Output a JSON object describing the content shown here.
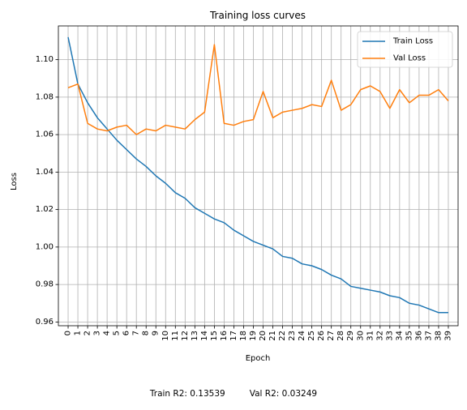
{
  "chart_data": {
    "type": "line",
    "title": "Training loss curves",
    "xlabel": "Epoch",
    "ylabel": "Loss",
    "x": [
      0,
      1,
      2,
      3,
      4,
      5,
      6,
      7,
      8,
      9,
      10,
      11,
      12,
      13,
      14,
      15,
      16,
      17,
      18,
      19,
      20,
      21,
      22,
      23,
      24,
      25,
      26,
      27,
      28,
      29,
      30,
      31,
      32,
      33,
      34,
      35,
      36,
      37,
      38,
      39
    ],
    "xlim": [
      -1,
      40
    ],
    "ylim": [
      0.958,
      1.118
    ],
    "yticks": [
      0.96,
      0.98,
      1.0,
      1.02,
      1.04,
      1.06,
      1.08,
      1.1
    ],
    "ytick_labels": [
      "0.96",
      "0.98",
      "1.00",
      "1.02",
      "1.04",
      "1.06",
      "1.08",
      "1.10"
    ],
    "grid": true,
    "legend": "top-right",
    "series": [
      {
        "name": "Train Loss",
        "color": "#1f77b4",
        "values": [
          1.112,
          1.087,
          1.077,
          1.069,
          1.063,
          1.057,
          1.052,
          1.047,
          1.043,
          1.038,
          1.034,
          1.029,
          1.026,
          1.021,
          1.018,
          1.015,
          1.013,
          1.009,
          1.006,
          1.003,
          1.001,
          0.999,
          0.995,
          0.994,
          0.991,
          0.99,
          0.988,
          0.985,
          0.983,
          0.979,
          0.978,
          0.977,
          0.976,
          0.974,
          0.973,
          0.97,
          0.969,
          0.967,
          0.965,
          0.965
        ]
      },
      {
        "name": "Val Loss",
        "color": "#ff7f0e",
        "values": [
          1.085,
          1.087,
          1.066,
          1.063,
          1.062,
          1.064,
          1.065,
          1.06,
          1.063,
          1.062,
          1.065,
          1.064,
          1.063,
          1.068,
          1.072,
          1.108,
          1.066,
          1.065,
          1.067,
          1.068,
          1.083,
          1.069,
          1.072,
          1.073,
          1.074,
          1.076,
          1.075,
          1.089,
          1.073,
          1.076,
          1.084,
          1.086,
          1.083,
          1.074,
          1.084,
          1.077,
          1.081,
          1.081,
          1.084,
          1.078
        ]
      }
    ]
  },
  "footer": {
    "train_r2": "Train R2: 0.13539",
    "val_r2": "Val R2: 0.03249"
  }
}
